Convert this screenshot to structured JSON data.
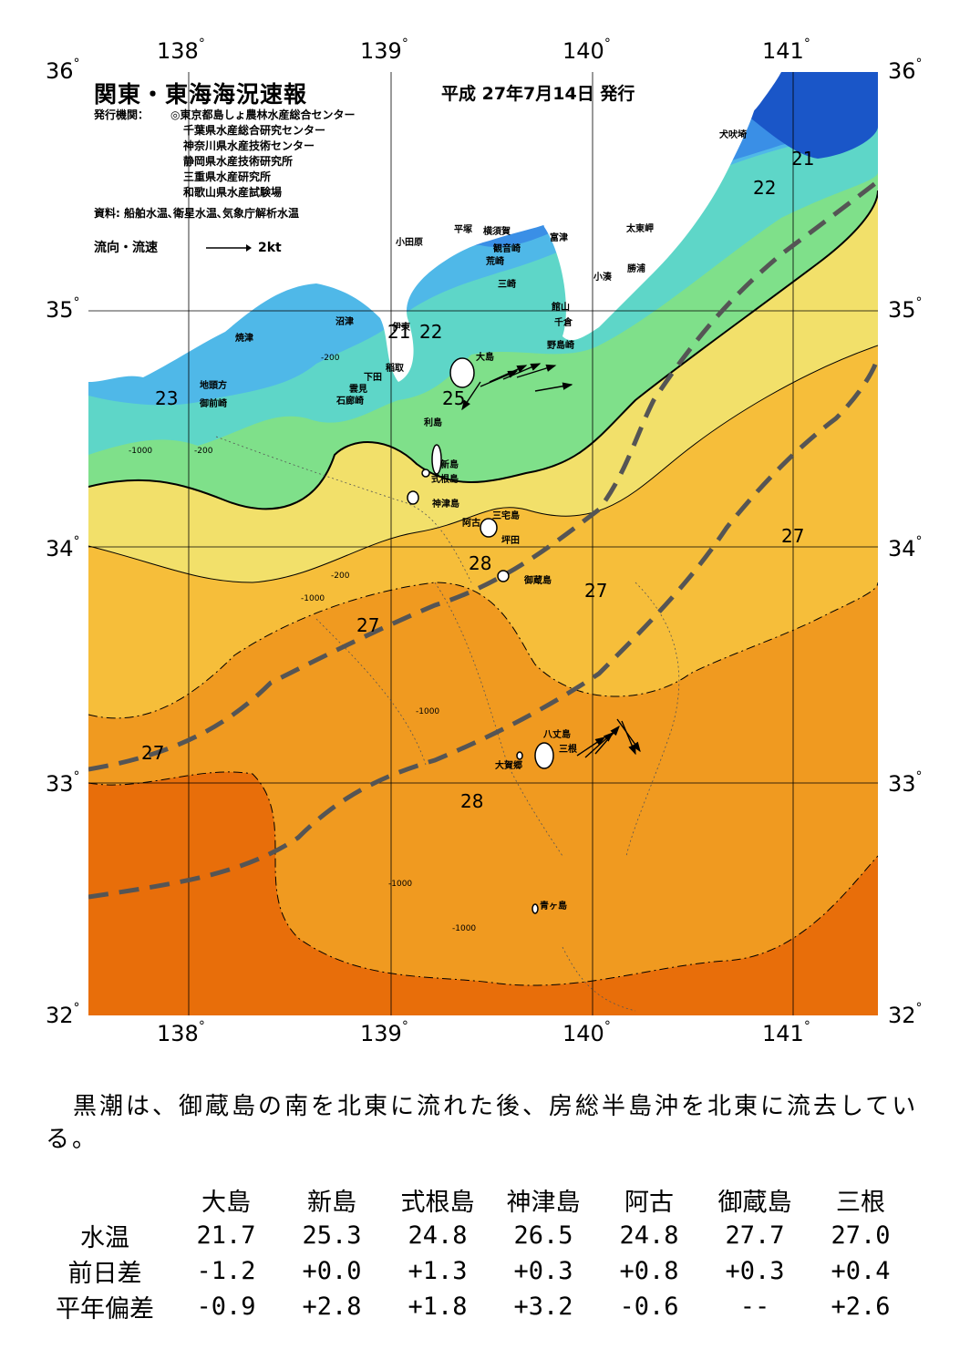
{
  "header": {
    "title": "関東・東海海況速報",
    "date": "平成 27年7月14日 発行",
    "issuer_label": "発行機関：",
    "issuers": [
      "◎東京都島しょ農林水産総合センター",
      "千葉県水産総合研究センター",
      "神奈川県水産技術センター",
      "静岡県水産技術研究所",
      "三重県水産研究所",
      "和歌山県水産試験場"
    ],
    "source": "資料: 船舶水温､衛星水温､気象庁解析水温",
    "flow_legend": "流向・流速",
    "flow_scale": "2kt"
  },
  "axes": {
    "lon": [
      "138",
      "139",
      "140",
      "141"
    ],
    "lat": [
      "36",
      "35",
      "34",
      "33",
      "32"
    ]
  },
  "places": {
    "inubosaki": "犬吠埼",
    "taitomisaki": "太東岬",
    "katsuura": "勝浦",
    "kominato": "小湊",
    "futtsu": "富津",
    "yokosuka": "横須賀",
    "hiratsuka": "平塚",
    "odawara": "小田原",
    "kannonzaki": "観音崎",
    "araisaki": "荒崎",
    "miura": "三崎",
    "tateyama": "館山",
    "chikura": "千倉",
    "nojimazaki": "野島崎",
    "numazu": "沼津",
    "yaizu": "焼津",
    "ito": "伊東",
    "inatori": "稲取",
    "shimoda": "下田",
    "kumomi": "雲見",
    "irozaki": "石廊崎",
    "jitogata": "地頭方",
    "omaezaki": "御前崎",
    "oshima": "大島",
    "toshima": "利島",
    "niijima": "新島",
    "shikinejima": "式根島",
    "kozushima": "神津島",
    "miyakejima": "三宅島",
    "ako": "阿古",
    "tsubota": "坪田",
    "mikurajima": "御蔵島",
    "hachijojima": "八丈島",
    "mitsune": "三根",
    "okago": "大賀郷",
    "aogashima": "青ヶ島"
  },
  "isotherms": [
    "21",
    "22",
    "21",
    "22",
    "23",
    "25",
    "28",
    "27",
    "27",
    "27",
    "27",
    "28"
  ],
  "depth_labels": [
    "-200",
    "-1000"
  ],
  "summary": "黒潮は、御蔵島の南を北東に流れた後、房総半島沖を北東に流去している。",
  "table": {
    "columns": [
      "大島",
      "新島",
      "式根島",
      "神津島",
      "阿古",
      "御蔵島",
      "三根"
    ],
    "rows": [
      {
        "label": "水温",
        "values": [
          "21.7",
          "25.3",
          "24.8",
          "26.5",
          "24.8",
          "27.7",
          "27.0"
        ]
      },
      {
        "label": "前日差",
        "values": [
          "-1.2",
          "+0.0",
          "+1.3",
          "+0.3",
          "+0.8",
          "+0.3",
          "+0.4"
        ]
      },
      {
        "label": "平年偏差",
        "values": [
          "-0.9",
          "+2.8",
          "+1.8",
          "+3.2",
          "-0.6",
          "--",
          "+2.6"
        ]
      }
    ]
  },
  "colors": {
    "t21": "#1a56c8",
    "t22": "#3a8fe6",
    "t23": "#4fb8e8",
    "t24": "#5ed6c8",
    "t25": "#7fe08a",
    "t26": "#f2e06a",
    "t27": "#f6be3a",
    "t28": "#f09a20",
    "t29": "#e86e0a",
    "land": "#ffffff",
    "kuroshio": "#555555"
  }
}
